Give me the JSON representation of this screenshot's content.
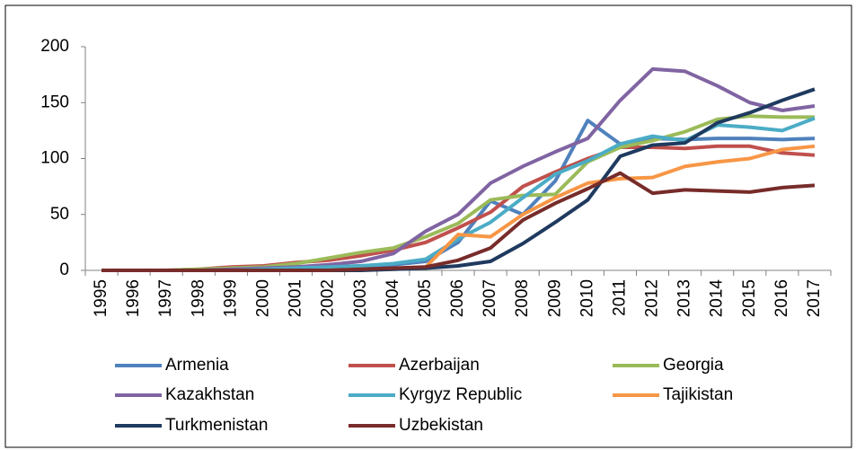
{
  "chart_data": {
    "type": "line",
    "categories": [
      "1995",
      "1996",
      "1997",
      "1998",
      "1999",
      "2000",
      "2001",
      "2002",
      "2003",
      "2004",
      "2005",
      "2006",
      "2007",
      "2008",
      "2009",
      "2010",
      "2011",
      "2012",
      "2013",
      "2014",
      "2015",
      "2016",
      "2017"
    ],
    "ylim": [
      0,
      200
    ],
    "yticks": [
      0,
      50,
      100,
      150,
      200
    ],
    "grid": false,
    "legend": "bottom",
    "series": [
      {
        "name": "Armenia",
        "color": "#4f81bd",
        "values": [
          0,
          0,
          0,
          0,
          1,
          1,
          2,
          3,
          4,
          5,
          8,
          25,
          62,
          50,
          80,
          134,
          113,
          118,
          117,
          118,
          118,
          117,
          118
        ]
      },
      {
        "name": "Azerbaijan",
        "color": "#c0504d",
        "values": [
          0,
          0,
          0,
          1,
          3,
          4,
          7,
          9,
          13,
          18,
          25,
          38,
          52,
          75,
          88,
          100,
          110,
          110,
          109,
          111,
          111,
          105,
          103
        ]
      },
      {
        "name": "Georgia",
        "color": "#9bbb59",
        "values": [
          0,
          0,
          0,
          1,
          2,
          3,
          6,
          11,
          16,
          20,
          30,
          42,
          63,
          67,
          68,
          97,
          110,
          116,
          124,
          135,
          138,
          137,
          137
        ]
      },
      {
        "name": "Kazakhstan",
        "color": "#8064a2",
        "values": [
          0,
          0,
          0,
          0,
          1,
          2,
          3,
          5,
          8,
          15,
          35,
          50,
          78,
          93,
          106,
          118,
          152,
          180,
          178,
          165,
          150,
          143,
          147
        ]
      },
      {
        "name": "Kyrgyz Republic",
        "color": "#4bacc6",
        "values": [
          0,
          0,
          0,
          0,
          0,
          1,
          2,
          3,
          4,
          6,
          10,
          28,
          43,
          65,
          86,
          98,
          113,
          120,
          116,
          130,
          128,
          125,
          136
        ]
      },
      {
        "name": "Tajikistan",
        "color": "#f79646",
        "values": [
          0,
          0,
          0,
          0,
          0,
          0,
          0,
          0,
          1,
          1,
          3,
          32,
          30,
          50,
          65,
          78,
          82,
          83,
          93,
          97,
          100,
          108,
          111
        ]
      },
      {
        "name": "Turkmenistan",
        "color": "#1f3a5f",
        "values": [
          0,
          0,
          0,
          0,
          0,
          0,
          0,
          0,
          0,
          1,
          2,
          4,
          8,
          24,
          43,
          63,
          102,
          112,
          114,
          132,
          141,
          152,
          162
        ]
      },
      {
        "name": "Uzbekistan",
        "color": "#772c2a",
        "values": [
          0,
          0,
          0,
          0,
          0,
          0,
          0,
          0,
          1,
          2,
          3,
          9,
          20,
          45,
          60,
          73,
          87,
          69,
          72,
          71,
          70,
          74,
          76
        ]
      }
    ]
  }
}
